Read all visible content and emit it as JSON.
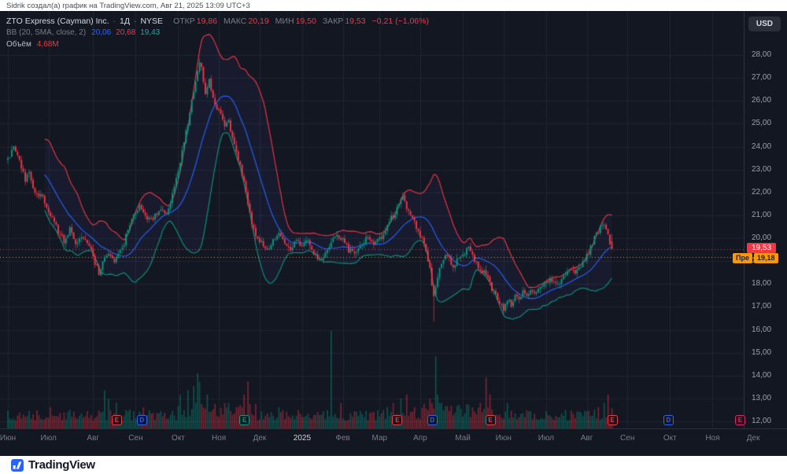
{
  "meta": {
    "attribution": "Sidrik создал(а) график на TradingView.com, Авг 21, 2025 13:09 UTC+3",
    "footer_brand": "TradingView"
  },
  "legend": {
    "symbol_title": "ZTO Express (Cayman) Inc.",
    "sep": "·",
    "interval": "1Д",
    "exchange": "NYSE",
    "ohlc": [
      {
        "label": "ОТКР",
        "value": "19,86"
      },
      {
        "label": "МАКС",
        "value": "20,19"
      },
      {
        "label": "МИН",
        "value": "19,50"
      },
      {
        "label": "ЗАКР",
        "value": "19,53"
      }
    ],
    "change": "−0,21 (−1,06%)",
    "bb": {
      "label": "BB (20, SMA, close, 2)",
      "basis": "20,06",
      "upper": "20,68",
      "lower": "19,43"
    },
    "volume": {
      "label": "Объём",
      "value": "4,68М"
    }
  },
  "axis": {
    "currency_button": "USD",
    "price_ticks": [
      "28,00",
      "27,00",
      "26,00",
      "25,00",
      "24,00",
      "23,00",
      "22,00",
      "21,00",
      "20,00",
      "19,00",
      "18,00",
      "17,00",
      "16,00",
      "15,00",
      "14,00",
      "13,00",
      "12,00"
    ],
    "last_price_label": "19,53",
    "premarket_label": "Пре",
    "premarket_price": "19,18"
  },
  "colors": {
    "up": "#089981",
    "down": "#f23645",
    "basis": "#2962ff",
    "upper_band": "#f23645",
    "lower_band": "#089981",
    "premarket": "#ff9800",
    "grid": "rgba(47,52,65,0.5)",
    "band_fill": "rgba(96,126,255,0.05)",
    "vol_up": "rgba(8,153,129,0.45)",
    "vol_down": "rgba(242,54,69,0.45)"
  },
  "chart_data": {
    "type": "candlestick",
    "title": "ZTO Express (Cayman) Inc. · 1Д · NYSE",
    "ylim": [
      12,
      28
    ],
    "days": 313,
    "current_price": 19.53,
    "premarket_price": 19.18,
    "last_candle": {
      "o": 19.86,
      "h": 20.19,
      "l": 19.5,
      "c": 19.53,
      "change": -0.21,
      "change_pct": -1.06
    },
    "indicators": {
      "bollinger": {
        "length": 20,
        "source": "SMA close",
        "mult": 2,
        "basis": 20.06,
        "upper": 20.68,
        "lower": 19.43
      },
      "volume_current_label": "4,68М"
    },
    "price_path": [
      [
        0,
        23.4
      ],
      [
        2,
        23.9
      ],
      [
        3,
        24.1
      ],
      [
        5,
        23.6
      ],
      [
        7,
        23.1
      ],
      [
        9,
        22.6
      ],
      [
        11,
        22.9
      ],
      [
        13,
        22.2
      ],
      [
        15,
        21.8
      ],
      [
        17,
        22.0
      ],
      [
        20,
        21.4
      ],
      [
        23,
        20.9
      ],
      [
        26,
        20.3
      ],
      [
        29,
        19.9
      ],
      [
        32,
        20.4
      ],
      [
        35,
        19.8
      ],
      [
        38,
        20.1
      ],
      [
        41,
        19.8
      ],
      [
        43,
        19.6
      ],
      [
        45,
        18.9
      ],
      [
        47,
        18.5
      ],
      [
        49,
        19.0
      ],
      [
        52,
        19.4
      ],
      [
        55,
        18.9
      ],
      [
        57,
        19.2
      ],
      [
        60,
        19.8
      ],
      [
        63,
        20.6
      ],
      [
        65,
        21.0
      ],
      [
        68,
        21.5
      ],
      [
        70,
        21.2
      ],
      [
        73,
        20.8
      ],
      [
        76,
        21.0
      ],
      [
        79,
        21.3
      ],
      [
        82,
        21.1
      ],
      [
        84,
        21.6
      ],
      [
        86,
        22.3
      ],
      [
        88,
        23.0
      ],
      [
        90,
        23.8
      ],
      [
        92,
        24.6
      ],
      [
        94,
        25.5
      ],
      [
        96,
        26.4
      ],
      [
        98,
        27.3
      ],
      [
        99,
        27.8
      ],
      [
        100,
        27.5
      ],
      [
        102,
        26.3
      ],
      [
        104,
        26.9
      ],
      [
        106,
        26.1
      ],
      [
        108,
        25.7
      ],
      [
        110,
        25.4
      ],
      [
        112,
        24.9
      ],
      [
        114,
        25.1
      ],
      [
        116,
        24.4
      ],
      [
        118,
        23.7
      ],
      [
        120,
        23.1
      ],
      [
        122,
        22.5
      ],
      [
        124,
        21.6
      ],
      [
        126,
        20.7
      ],
      [
        128,
        20.1
      ],
      [
        131,
        19.8
      ],
      [
        134,
        19.5
      ],
      [
        137,
        19.9
      ],
      [
        140,
        20.2
      ],
      [
        143,
        19.8
      ],
      [
        146,
        19.5
      ],
      [
        149,
        19.9
      ],
      [
        152,
        19.7
      ],
      [
        155,
        19.9
      ],
      [
        158,
        19.4
      ],
      [
        161,
        19.0
      ],
      [
        164,
        19.3
      ],
      [
        167,
        19.8
      ],
      [
        170,
        20.1
      ],
      [
        173,
        19.9
      ],
      [
        176,
        19.5
      ],
      [
        179,
        19.3
      ],
      [
        182,
        19.7
      ],
      [
        185,
        20.0
      ],
      [
        189,
        19.8
      ],
      [
        193,
        20.1
      ],
      [
        196,
        20.6
      ],
      [
        199,
        21.0
      ],
      [
        202,
        21.5
      ],
      [
        204,
        21.9
      ],
      [
        206,
        21.4
      ],
      [
        208,
        20.9
      ],
      [
        211,
        20.5
      ],
      [
        214,
        20.0
      ],
      [
        216,
        19.4
      ],
      [
        218,
        18.6
      ],
      [
        220,
        17.4
      ],
      [
        222,
        18.3
      ],
      [
        224,
        18.9
      ],
      [
        226,
        19.3
      ],
      [
        228,
        19.1
      ],
      [
        230,
        18.8
      ],
      [
        233,
        19.1
      ],
      [
        236,
        19.4
      ],
      [
        238,
        19.7
      ],
      [
        240,
        19.3
      ],
      [
        242,
        18.9
      ],
      [
        244,
        18.5
      ],
      [
        246,
        18.7
      ],
      [
        248,
        18.2
      ],
      [
        250,
        17.8
      ],
      [
        252,
        17.5
      ],
      [
        254,
        17.2
      ],
      [
        256,
        16.95
      ],
      [
        258,
        17.3
      ],
      [
        260,
        17.1
      ],
      [
        262,
        17.5
      ],
      [
        264,
        17.3
      ],
      [
        266,
        17.7
      ],
      [
        268,
        17.5
      ],
      [
        270,
        17.8
      ],
      [
        272,
        17.6
      ],
      [
        275,
        17.9
      ],
      [
        278,
        18.0
      ],
      [
        281,
        18.2
      ],
      [
        284,
        18.0
      ],
      [
        287,
        18.4
      ],
      [
        290,
        18.6
      ],
      [
        293,
        18.5
      ],
      [
        296,
        18.8
      ],
      [
        299,
        19.2
      ],
      [
        301,
        19.6
      ],
      [
        303,
        20.0
      ],
      [
        305,
        20.3
      ],
      [
        307,
        20.6
      ],
      [
        308,
        20.7
      ],
      [
        309,
        20.4
      ],
      [
        310,
        20.1
      ],
      [
        311,
        19.74
      ],
      [
        312,
        19.53
      ]
    ],
    "overrides": {
      "220": {
        "l": 16.35
      },
      "311": {
        "c": 19.74
      },
      "312": {
        "o": 19.86,
        "h": 20.19,
        "l": 19.5,
        "c": 19.53
      }
    },
    "volume_spikes": [
      [
        22,
        5
      ],
      [
        50,
        9
      ],
      [
        52,
        7
      ],
      [
        56,
        6
      ],
      [
        63,
        4.5
      ],
      [
        70,
        5
      ],
      [
        89,
        8
      ],
      [
        93,
        9
      ],
      [
        96,
        10
      ],
      [
        98,
        13
      ],
      [
        99,
        11
      ],
      [
        103,
        8
      ],
      [
        112,
        6
      ],
      [
        118,
        5
      ],
      [
        122,
        8
      ],
      [
        124,
        11
      ],
      [
        140,
        5
      ],
      [
        167,
        23
      ],
      [
        172,
        6
      ],
      [
        196,
        5
      ],
      [
        199,
        6
      ],
      [
        203,
        7
      ],
      [
        206,
        8
      ],
      [
        210,
        5
      ],
      [
        218,
        7
      ],
      [
        221,
        17
      ],
      [
        222,
        8
      ],
      [
        224,
        6
      ],
      [
        240,
        5
      ],
      [
        244,
        6
      ],
      [
        247,
        12
      ],
      [
        249,
        8
      ],
      [
        258,
        6
      ],
      [
        270,
        4
      ],
      [
        286,
        3.5
      ],
      [
        295,
        4
      ],
      [
        299,
        4
      ],
      [
        303,
        4.5
      ],
      [
        305,
        5
      ],
      [
        308,
        6
      ],
      [
        310,
        8
      ],
      [
        312,
        4.68
      ]
    ],
    "markers": [
      {
        "day": 56,
        "letter": "E",
        "color": "#f23645"
      },
      {
        "day": 69,
        "letter": "D",
        "color": "#2962ff"
      },
      {
        "day": 122,
        "letter": "E",
        "color": "#089981"
      },
      {
        "day": 201,
        "letter": "E",
        "color": "#f23645"
      },
      {
        "day": 219,
        "letter": "D",
        "color": "#2962ff"
      },
      {
        "day": 249,
        "letter": "E",
        "color": "#f23645"
      },
      {
        "day": 312,
        "letter": "E",
        "color": "#f23645"
      },
      {
        "day": 341,
        "letter": "D",
        "color": "#2962ff"
      },
      {
        "day": 378,
        "letter": "E",
        "color": "#e91e63"
      }
    ],
    "months": [
      {
        "label": "Июн",
        "day": 0
      },
      {
        "label": "Июл",
        "day": 21
      },
      {
        "label": "Авг",
        "day": 44
      },
      {
        "label": "Сен",
        "day": 66
      },
      {
        "label": "Окт",
        "day": 88
      },
      {
        "label": "Ноя",
        "day": 109
      },
      {
        "label": "Дек",
        "day": 130
      },
      {
        "label": "2025",
        "day": 152,
        "year": true
      },
      {
        "label": "Фев",
        "day": 173
      },
      {
        "label": "Мар",
        "day": 192
      },
      {
        "label": "Апр",
        "day": 213
      },
      {
        "label": "Май",
        "day": 235
      },
      {
        "label": "Июн",
        "day": 256
      },
      {
        "label": "Июл",
        "day": 278
      },
      {
        "label": "Авг",
        "day": 299
      },
      {
        "label": "Сен",
        "day": 320
      },
      {
        "label": "Окт",
        "day": 342
      },
      {
        "label": "Ноя",
        "day": 364
      },
      {
        "label": "Дек",
        "day": 385
      }
    ]
  }
}
